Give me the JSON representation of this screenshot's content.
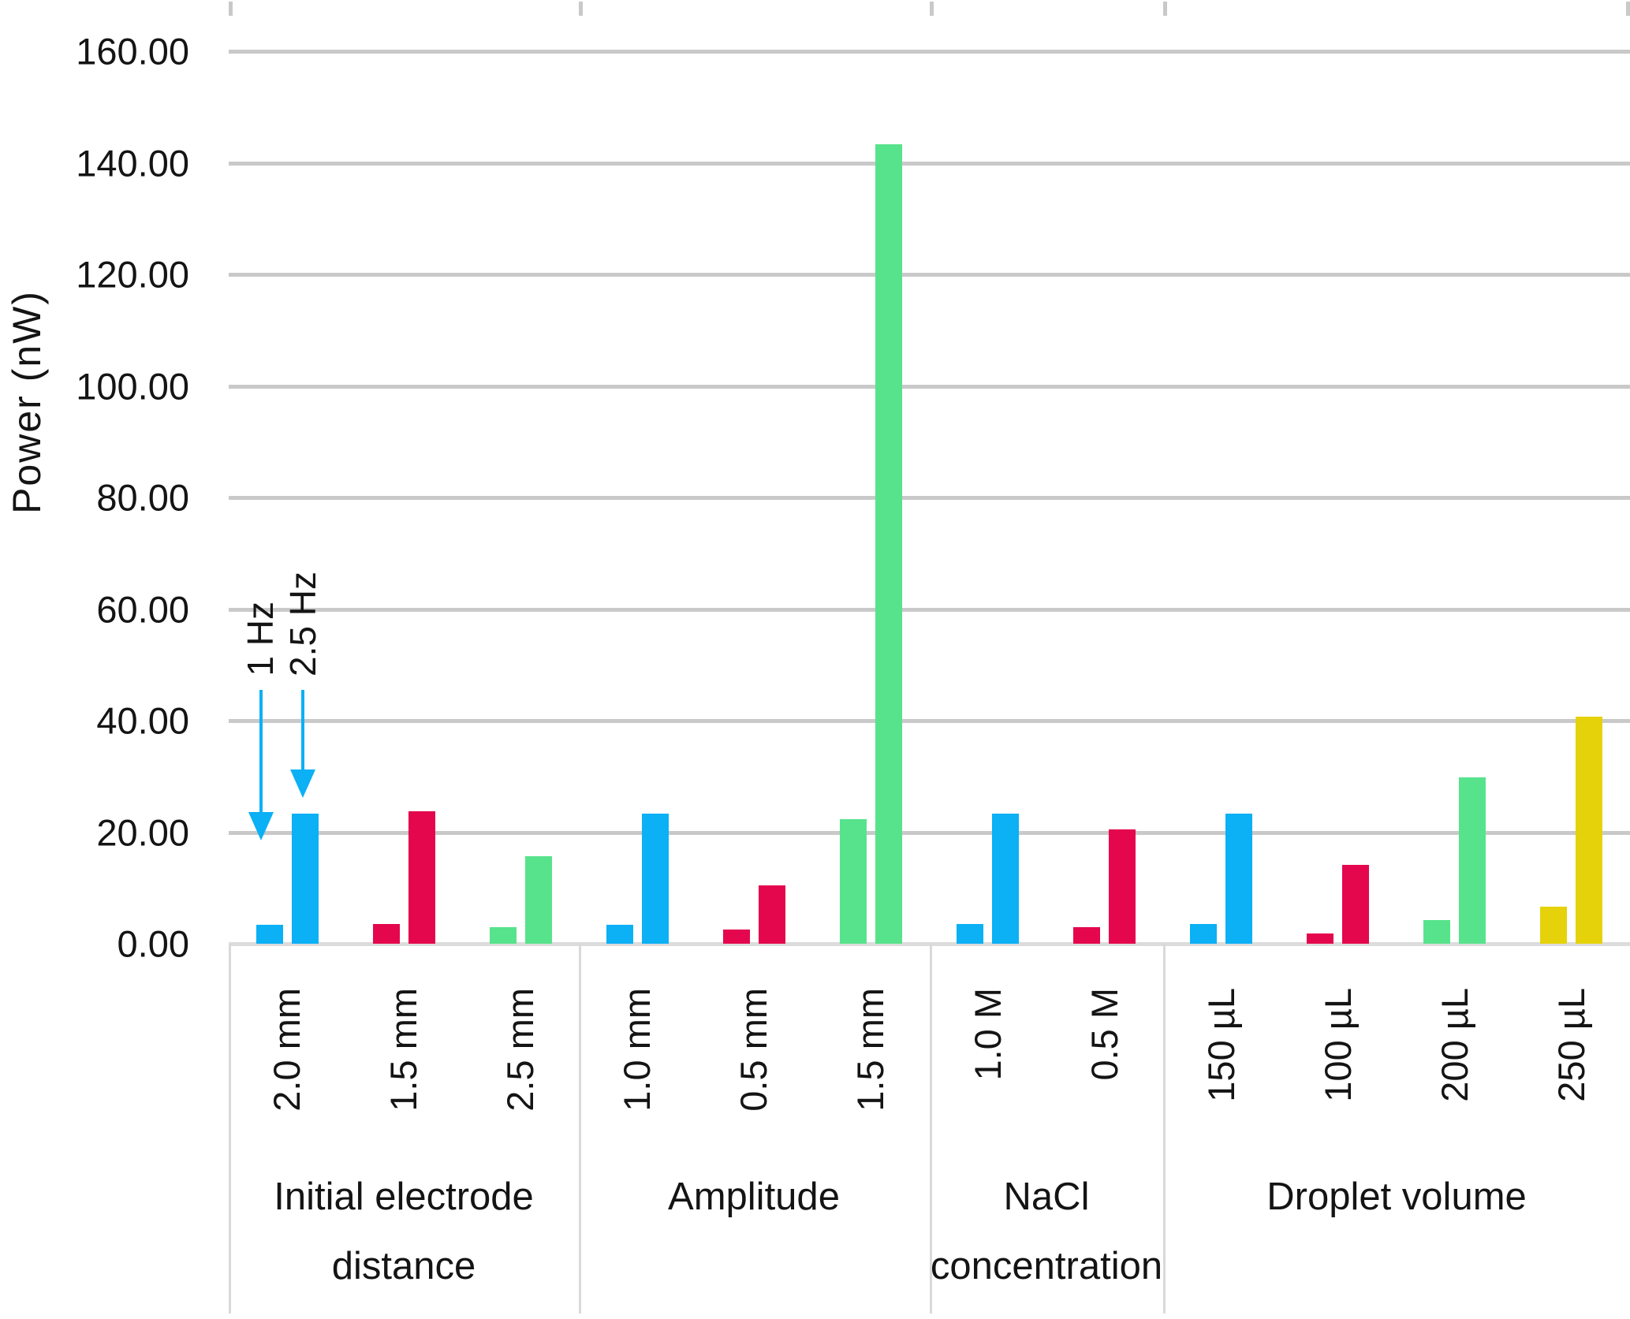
{
  "chart_data": {
    "type": "bar",
    "title": "",
    "ylabel": "Power (nW)",
    "xlabel": "",
    "ylim": [
      0,
      160
    ],
    "ytick_step": 20,
    "grid": true,
    "legend_position": "annotated-arrows",
    "y_tick_labels": [
      "160.00",
      "140.00",
      "120.00",
      "100.00",
      "80.00",
      "60.00",
      "40.00",
      "20.00",
      "0.00"
    ],
    "series": [
      {
        "name": "1 Hz"
      },
      {
        "name": "2.5 Hz"
      }
    ],
    "palette": {
      "slot1": "#0BB0F5",
      "slot2": "#E4074E",
      "slot3": "#57E38C",
      "slot4": "#E5D20B",
      "gridline": "#C9C9C9",
      "axisline": "#DCDCDC",
      "arrow": "#0BB0F5",
      "text": "#141414"
    },
    "groups": [
      {
        "label_lines": [
          "Initial electrode",
          "distance"
        ],
        "categories": [
          {
            "label": "2.0 mm",
            "values": [
              3.4,
              23.3
            ]
          },
          {
            "label": "1.5 mm",
            "values": [
              3.5,
              23.8
            ]
          },
          {
            "label": "2.5 mm",
            "values": [
              3.0,
              15.7
            ]
          }
        ]
      },
      {
        "label_lines": [
          "Amplitude"
        ],
        "categories": [
          {
            "label": "1.0 mm",
            "values": [
              3.4,
              23.3
            ]
          },
          {
            "label": "0.5 mm",
            "values": [
              2.5,
              10.5
            ]
          },
          {
            "label": "1.5 mm",
            "values": [
              22.4,
              143.3
            ]
          }
        ]
      },
      {
        "label_lines": [
          "NaCl",
          "concentration"
        ],
        "categories": [
          {
            "label": "1.0 M",
            "values": [
              3.5,
              23.3
            ]
          },
          {
            "label": "0.5 M",
            "values": [
              2.9,
              20.5
            ]
          }
        ]
      },
      {
        "label_lines": [
          "Droplet volume"
        ],
        "categories": [
          {
            "label": "150 µL",
            "values": [
              3.5,
              23.3
            ]
          },
          {
            "label": "100 µL",
            "values": [
              1.9,
              14.2
            ]
          },
          {
            "label": "200 µL",
            "values": [
              4.3,
              29.8
            ]
          },
          {
            "label": "250 µL",
            "values": [
              6.6,
              40.7
            ]
          }
        ]
      }
    ],
    "annotations": [
      {
        "label": "1 Hz"
      },
      {
        "label": "2.5 Hz"
      }
    ]
  }
}
